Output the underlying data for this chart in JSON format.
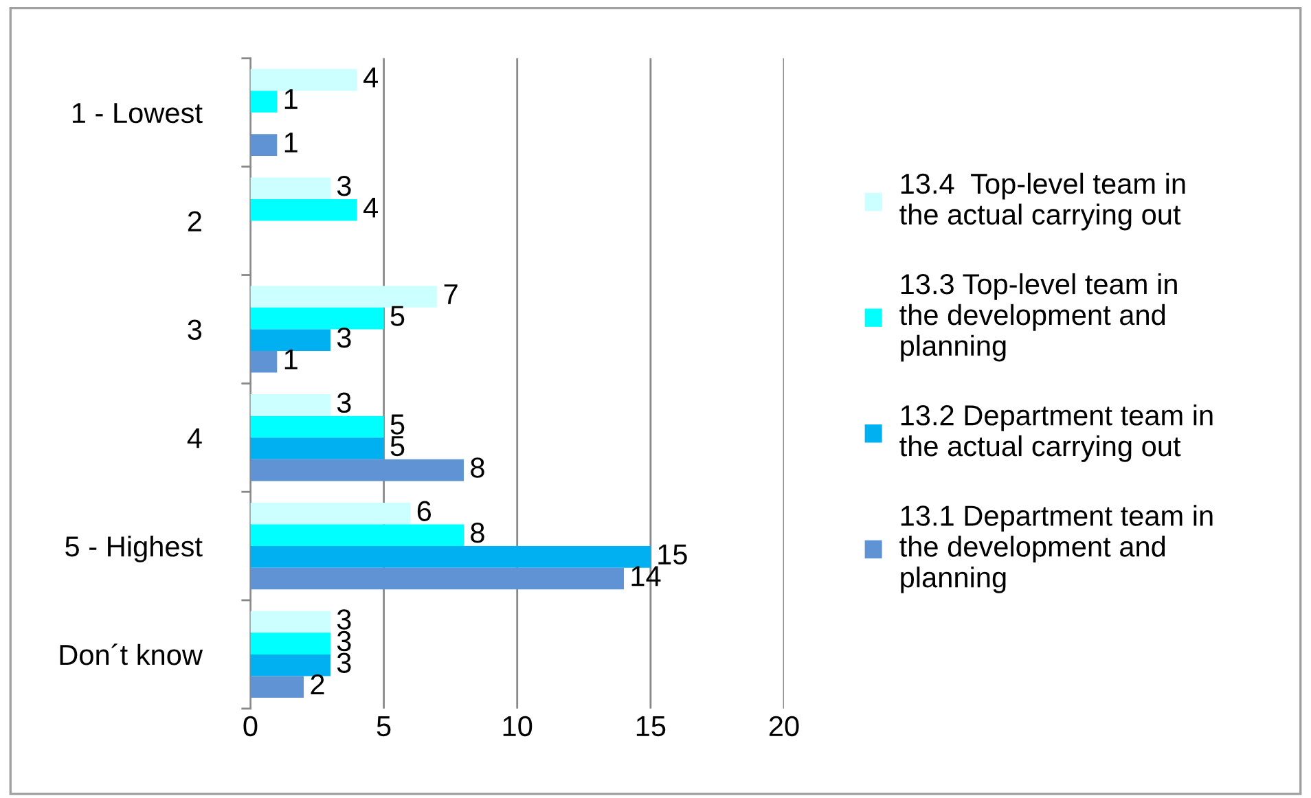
{
  "chart_data": {
    "type": "bar",
    "orientation": "horizontal",
    "categories": [
      "1 - Lowest",
      "2",
      "3",
      "4",
      "5 - Highest",
      "Don´t know"
    ],
    "series": [
      {
        "name": "13.4  Top-level team in the actual carrying out",
        "color": "#ccffff",
        "values": [
          4,
          3,
          7,
          3,
          6,
          3
        ]
      },
      {
        "name": "13.3 Top-level team in the development and planning",
        "color": "#00ffff",
        "values": [
          1,
          4,
          5,
          5,
          8,
          3
        ]
      },
      {
        "name": "13.2 Department team in the actual carrying out",
        "color": "#00b0f0",
        "values": [
          null,
          null,
          3,
          5,
          15,
          3
        ]
      },
      {
        "name": "13.1 Department team in the development and planning",
        "color": "#5f93d3",
        "values": [
          1,
          null,
          1,
          8,
          14,
          2
        ]
      }
    ],
    "xlim": [
      0,
      20
    ],
    "xticks": [
      0,
      5,
      10,
      15,
      20
    ],
    "grid": "x",
    "legend": "right",
    "data_labels": true
  }
}
